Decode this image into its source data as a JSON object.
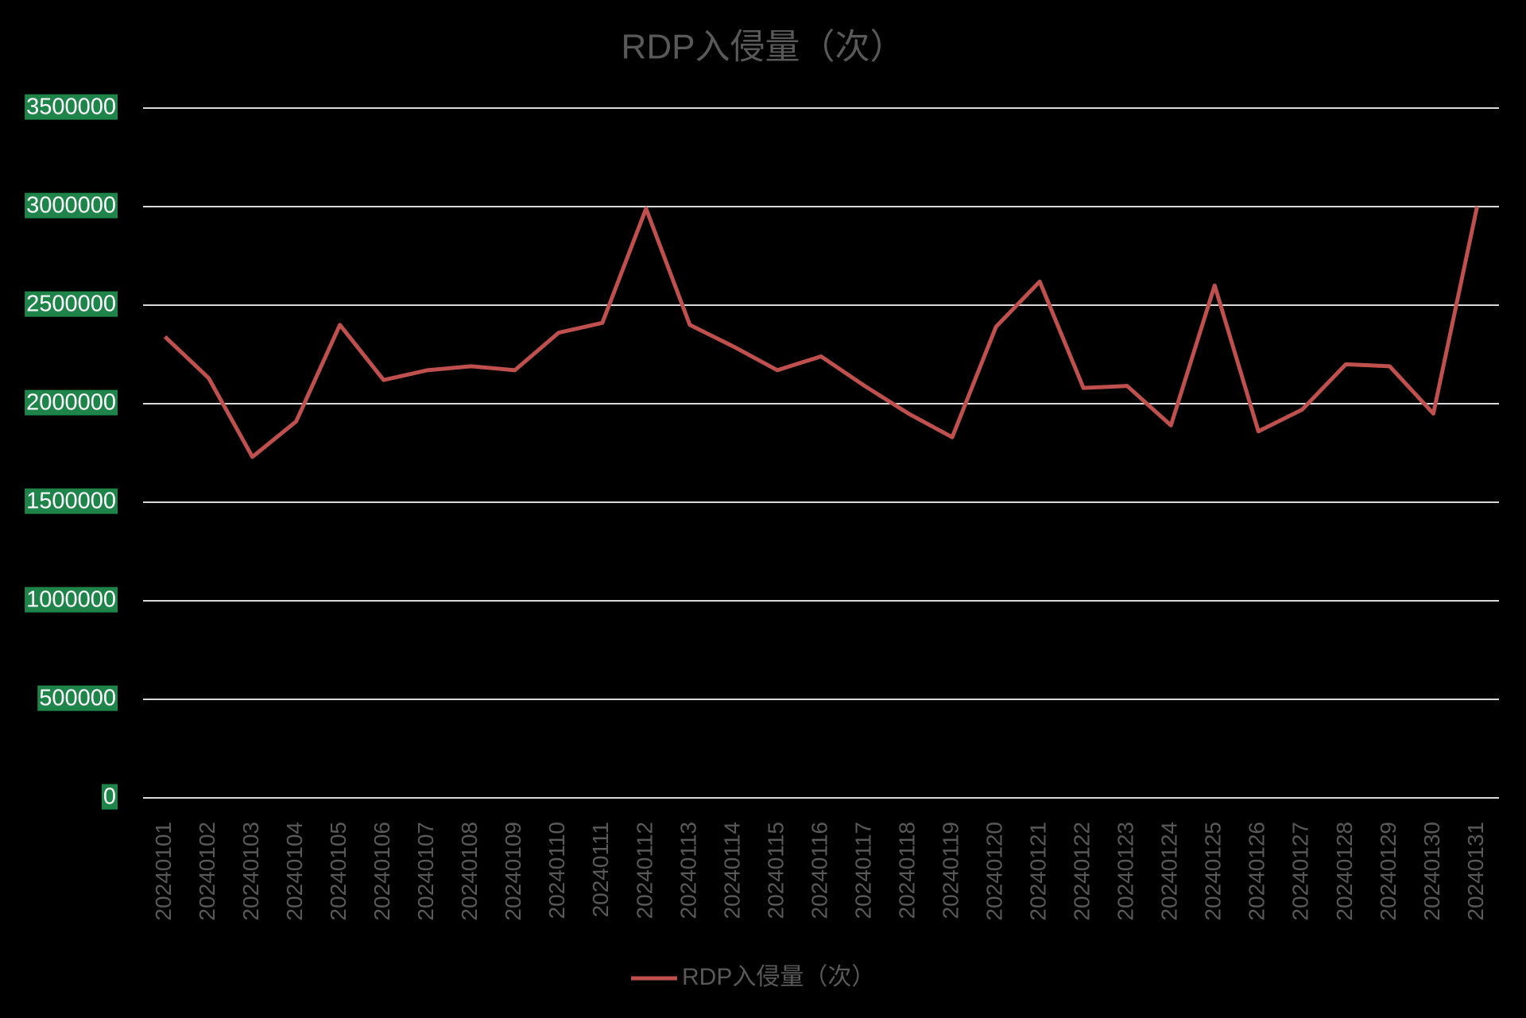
{
  "chart_data": {
    "type": "line",
    "title": "RDP入侵量（次）",
    "categories": [
      "20240101",
      "20240102",
      "20240103",
      "20240104",
      "20240105",
      "20240106",
      "20240107",
      "20240108",
      "20240109",
      "20240110",
      "20240111",
      "20240112",
      "20240113",
      "20240114",
      "20240115",
      "20240116",
      "20240117",
      "20240118",
      "20240119",
      "20240120",
      "20240121",
      "20240122",
      "20240123",
      "20240124",
      "20240125",
      "20240126",
      "20240127",
      "20240128",
      "20240129",
      "20240130",
      "20240131"
    ],
    "series": [
      {
        "name": "RDP入侵量（次）",
        "color": "#c0504d",
        "values": [
          2340000,
          2130000,
          1730000,
          1910000,
          2400000,
          2120000,
          2170000,
          2190000,
          2170000,
          2360000,
          2410000,
          2990000,
          2400000,
          2290000,
          2170000,
          2240000,
          2090000,
          1950000,
          1830000,
          2390000,
          2620000,
          2080000,
          2090000,
          1890000,
          2600000,
          1860000,
          1970000,
          2200000,
          2190000,
          1950000,
          3000000
        ]
      }
    ],
    "ylim": [
      0,
      3500000
    ],
    "yticks": [
      0,
      500000,
      1000000,
      1500000,
      2000000,
      2500000,
      3000000,
      3500000
    ],
    "grid": true,
    "legend": "bottom",
    "tick_label_background": "#1e8449"
  }
}
